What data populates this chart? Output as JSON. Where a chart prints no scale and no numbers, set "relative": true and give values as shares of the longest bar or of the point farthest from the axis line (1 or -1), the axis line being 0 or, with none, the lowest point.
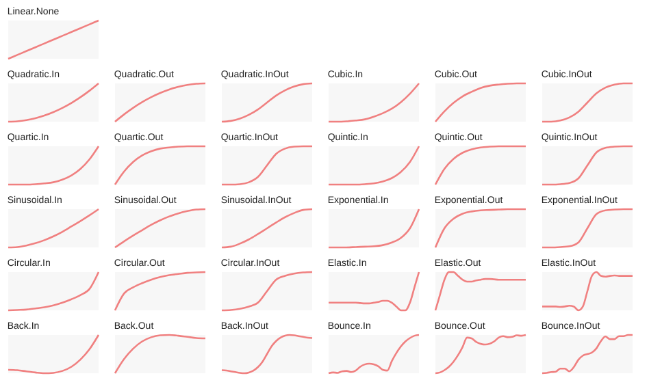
{
  "chart_data": [
    {
      "type": "line",
      "title": "Linear.None",
      "relative": true,
      "color": "#f08080",
      "categories": [
        null,
        null,
        null,
        null,
        null,
        null,
        null,
        null,
        null,
        null,
        null
      ],
      "values": [
        0,
        0.1,
        0.2,
        0.3,
        0.4,
        0.5,
        0.6,
        0.7,
        0.8,
        0.9,
        1
      ]
    },
    {
      "type": "line",
      "title": "Quadratic.In",
      "relative": true,
      "color": "#f08080",
      "categories": [
        null,
        null,
        null,
        null,
        null,
        null,
        null,
        null,
        null,
        null,
        null
      ],
      "values": [
        0,
        0.01,
        0.04,
        0.09,
        0.16,
        0.25,
        0.36,
        0.49,
        0.64,
        0.81,
        1
      ]
    },
    {
      "type": "line",
      "title": "Quadratic.Out",
      "relative": true,
      "color": "#f08080",
      "categories": [
        null,
        null,
        null,
        null,
        null,
        null,
        null,
        null,
        null,
        null,
        null
      ],
      "values": [
        0,
        0.19,
        0.36,
        0.51,
        0.64,
        0.75,
        0.84,
        0.91,
        0.96,
        0.99,
        1
      ]
    },
    {
      "type": "line",
      "title": "Quadratic.InOut",
      "relative": true,
      "color": "#f08080",
      "categories": [
        null,
        null,
        null,
        null,
        null,
        null,
        null,
        null,
        null,
        null,
        null
      ],
      "values": [
        0,
        0.02,
        0.08,
        0.18,
        0.32,
        0.5,
        0.68,
        0.82,
        0.92,
        0.98,
        1
      ]
    },
    {
      "type": "line",
      "title": "Cubic.In",
      "relative": true,
      "color": "#f08080",
      "categories": [
        null,
        null,
        null,
        null,
        null,
        null,
        null,
        null,
        null,
        null,
        null
      ],
      "values": [
        0,
        0,
        0.01,
        0.03,
        0.06,
        0.13,
        0.22,
        0.34,
        0.51,
        0.73,
        1
      ]
    },
    {
      "type": "line",
      "title": "Cubic.Out",
      "relative": true,
      "color": "#f08080",
      "categories": [
        null,
        null,
        null,
        null,
        null,
        null,
        null,
        null,
        null,
        null,
        null
      ],
      "values": [
        0,
        0.27,
        0.49,
        0.66,
        0.78,
        0.88,
        0.94,
        0.97,
        0.99,
        1,
        1
      ]
    },
    {
      "type": "line",
      "title": "Cubic.InOut",
      "relative": true,
      "color": "#f08080",
      "categories": [
        null,
        null,
        null,
        null,
        null,
        null,
        null,
        null,
        null,
        null,
        null
      ],
      "values": [
        0,
        0,
        0.03,
        0.11,
        0.26,
        0.5,
        0.74,
        0.89,
        0.97,
        1,
        1
      ]
    },
    {
      "type": "line",
      "title": "Quartic.In",
      "relative": true,
      "color": "#f08080",
      "categories": [
        null,
        null,
        null,
        null,
        null,
        null,
        null,
        null,
        null,
        null,
        null
      ],
      "values": [
        0,
        0,
        0,
        0.01,
        0.03,
        0.06,
        0.13,
        0.24,
        0.41,
        0.66,
        1
      ]
    },
    {
      "type": "line",
      "title": "Quartic.Out",
      "relative": true,
      "color": "#f08080",
      "categories": [
        null,
        null,
        null,
        null,
        null,
        null,
        null,
        null,
        null,
        null,
        null
      ],
      "values": [
        0,
        0.34,
        0.59,
        0.76,
        0.87,
        0.94,
        0.97,
        0.99,
        1,
        1,
        1
      ]
    },
    {
      "type": "line",
      "title": "Quartic.InOut",
      "relative": true,
      "color": "#f08080",
      "categories": [
        null,
        null,
        null,
        null,
        null,
        null,
        null,
        null,
        null,
        null,
        null
      ],
      "values": [
        0,
        0,
        0.01,
        0.06,
        0.2,
        0.5,
        0.8,
        0.94,
        0.99,
        1,
        1
      ]
    },
    {
      "type": "line",
      "title": "Quintic.In",
      "relative": true,
      "color": "#f08080",
      "categories": [
        null,
        null,
        null,
        null,
        null,
        null,
        null,
        null,
        null,
        null,
        null
      ],
      "values": [
        0,
        0,
        0,
        0,
        0.01,
        0.03,
        0.08,
        0.17,
        0.33,
        0.59,
        1
      ]
    },
    {
      "type": "line",
      "title": "Quintic.Out",
      "relative": true,
      "color": "#f08080",
      "categories": [
        null,
        null,
        null,
        null,
        null,
        null,
        null,
        null,
        null,
        null,
        null
      ],
      "values": [
        0,
        0.41,
        0.67,
        0.83,
        0.92,
        0.97,
        0.99,
        1,
        1,
        1,
        1
      ]
    },
    {
      "type": "line",
      "title": "Quintic.InOut",
      "relative": true,
      "color": "#f08080",
      "categories": [
        null,
        null,
        null,
        null,
        null,
        null,
        null,
        null,
        null,
        null,
        null
      ],
      "values": [
        0,
        0,
        0.01,
        0.04,
        0.16,
        0.5,
        0.84,
        0.96,
        0.99,
        1,
        1
      ]
    },
    {
      "type": "line",
      "title": "Sinusoidal.In",
      "relative": true,
      "color": "#f08080",
      "categories": [
        null,
        null,
        null,
        null,
        null,
        null,
        null,
        null,
        null,
        null,
        null
      ],
      "values": [
        0,
        0.01,
        0.05,
        0.11,
        0.19,
        0.29,
        0.41,
        0.55,
        0.69,
        0.84,
        1
      ]
    },
    {
      "type": "line",
      "title": "Sinusoidal.Out",
      "relative": true,
      "color": "#f08080",
      "categories": [
        null,
        null,
        null,
        null,
        null,
        null,
        null,
        null,
        null,
        null,
        null
      ],
      "values": [
        0,
        0.16,
        0.31,
        0.45,
        0.59,
        0.71,
        0.81,
        0.89,
        0.95,
        0.99,
        1
      ]
    },
    {
      "type": "line",
      "title": "Sinusoidal.InOut",
      "relative": true,
      "color": "#f08080",
      "categories": [
        null,
        null,
        null,
        null,
        null,
        null,
        null,
        null,
        null,
        null,
        null
      ],
      "values": [
        0,
        0.02,
        0.1,
        0.21,
        0.35,
        0.5,
        0.65,
        0.79,
        0.9,
        0.98,
        1
      ]
    },
    {
      "type": "line",
      "title": "Exponential.In",
      "relative": true,
      "color": "#f08080",
      "categories": [
        null,
        null,
        null,
        null,
        null,
        null,
        null,
        null,
        null,
        null,
        null
      ],
      "values": [
        0,
        0,
        0,
        0.01,
        0.02,
        0.03,
        0.06,
        0.13,
        0.25,
        0.5,
        1
      ]
    },
    {
      "type": "line",
      "title": "Exponential.Out",
      "relative": true,
      "color": "#f08080",
      "categories": [
        null,
        null,
        null,
        null,
        null,
        null,
        null,
        null,
        null,
        null,
        null
      ],
      "values": [
        0,
        0.5,
        0.75,
        0.88,
        0.94,
        0.97,
        0.98,
        0.99,
        1,
        1,
        1
      ]
    },
    {
      "type": "line",
      "title": "Exponential.InOut",
      "relative": true,
      "color": "#f08080",
      "categories": [
        null,
        null,
        null,
        null,
        null,
        null,
        null,
        null,
        null,
        null,
        null
      ],
      "values": [
        0,
        0,
        0.01,
        0.03,
        0.13,
        0.5,
        0.87,
        0.97,
        0.99,
        1,
        1
      ]
    },
    {
      "type": "line",
      "title": "Circular.In",
      "relative": true,
      "color": "#f08080",
      "categories": [
        null,
        null,
        null,
        null,
        null,
        null,
        null,
        null,
        null,
        null,
        null
      ],
      "values": [
        0,
        0.01,
        0.02,
        0.05,
        0.08,
        0.13,
        0.2,
        0.29,
        0.4,
        0.56,
        1
      ]
    },
    {
      "type": "line",
      "title": "Circular.Out",
      "relative": true,
      "color": "#f08080",
      "categories": [
        null,
        null,
        null,
        null,
        null,
        null,
        null,
        null,
        null,
        null,
        null
      ],
      "values": [
        0,
        0.44,
        0.6,
        0.71,
        0.8,
        0.87,
        0.92,
        0.95,
        0.98,
        0.99,
        1
      ]
    },
    {
      "type": "line",
      "title": "Circular.InOut",
      "relative": true,
      "color": "#f08080",
      "categories": [
        null,
        null,
        null,
        null,
        null,
        null,
        null,
        null,
        null,
        null,
        null
      ],
      "values": [
        0,
        0.01,
        0.04,
        0.1,
        0.2,
        0.5,
        0.8,
        0.9,
        0.96,
        0.99,
        1
      ]
    },
    {
      "type": "line",
      "title": "Elastic.In",
      "relative": true,
      "color": "#f08080",
      "categories": [
        null,
        null,
        null,
        null,
        null,
        null,
        null,
        null,
        null,
        null,
        null,
        null,
        null,
        null,
        null,
        null,
        null,
        null,
        null,
        null,
        null
      ],
      "values": [
        0.2,
        0.2,
        0.2,
        0.2,
        0.2,
        0.2,
        0.2,
        0.19,
        0.18,
        0.18,
        0.2,
        0.22,
        0.25,
        0.25,
        0.2,
        0.1,
        0,
        0,
        0.2,
        0.6,
        1
      ]
    },
    {
      "type": "line",
      "title": "Elastic.Out",
      "relative": true,
      "color": "#f08080",
      "categories": [
        null,
        null,
        null,
        null,
        null,
        null,
        null,
        null,
        null,
        null,
        null,
        null,
        null,
        null,
        null,
        null,
        null,
        null,
        null,
        null,
        null
      ],
      "values": [
        0,
        0.4,
        0.8,
        1,
        1,
        0.9,
        0.8,
        0.75,
        0.75,
        0.78,
        0.8,
        0.82,
        0.82,
        0.81,
        0.8,
        0.8,
        0.8,
        0.8,
        0.8,
        0.8,
        0.8
      ]
    },
    {
      "type": "line",
      "title": "Elastic.InOut",
      "relative": true,
      "color": "#f08080",
      "categories": [
        null,
        null,
        null,
        null,
        null,
        null,
        null,
        null,
        null,
        null,
        null,
        null,
        null,
        null,
        null,
        null,
        null,
        null,
        null,
        null,
        null
      ],
      "values": [
        0.1,
        0.1,
        0.1,
        0.1,
        0.09,
        0.1,
        0.12,
        0.1,
        0,
        0.1,
        0.5,
        0.9,
        1,
        0.9,
        0.88,
        0.9,
        0.91,
        0.9,
        0.9,
        0.9,
        0.9
      ]
    },
    {
      "type": "line",
      "title": "Back.In",
      "relative": true,
      "color": "#f08080",
      "categories": [
        null,
        null,
        null,
        null,
        null,
        null,
        null,
        null,
        null,
        null,
        null
      ],
      "values": [
        0.09,
        0.08,
        0.05,
        0.02,
        0,
        0.01,
        0.06,
        0.17,
        0.36,
        0.63,
        1
      ]
    },
    {
      "type": "line",
      "title": "Back.Out",
      "relative": true,
      "color": "#f08080",
      "categories": [
        null,
        null,
        null,
        null,
        null,
        null,
        null,
        null,
        null,
        null,
        null
      ],
      "values": [
        0,
        0.37,
        0.64,
        0.83,
        0.94,
        0.99,
        1,
        0.98,
        0.95,
        0.92,
        0.91
      ]
    },
    {
      "type": "line",
      "title": "Back.InOut",
      "relative": true,
      "color": "#f08080",
      "categories": [
        null,
        null,
        null,
        null,
        null,
        null,
        null,
        null,
        null,
        null,
        null,
        null,
        null,
        null,
        null,
        null,
        null,
        null,
        null,
        null,
        null
      ],
      "values": [
        0.08,
        0.07,
        0.05,
        0.03,
        0.01,
        0,
        0.02,
        0.07,
        0.16,
        0.3,
        0.5,
        0.7,
        0.84,
        0.93,
        0.98,
        1,
        0.99,
        0.97,
        0.95,
        0.93,
        0.92
      ]
    },
    {
      "type": "line",
      "title": "Bounce.In",
      "relative": true,
      "color": "#f08080",
      "categories": [
        null,
        null,
        null,
        null,
        null,
        null,
        null,
        null,
        null,
        null,
        null,
        null,
        null,
        null,
        null,
        null,
        null,
        null,
        null,
        null,
        null
      ],
      "values": [
        0,
        0.02,
        0.01,
        0.05,
        0.06,
        0.03,
        0.07,
        0.17,
        0.23,
        0.25,
        0.23,
        0.18,
        0.09,
        0.07,
        0.32,
        0.53,
        0.7,
        0.83,
        0.92,
        0.98,
        1
      ]
    },
    {
      "type": "line",
      "title": "Bounce.Out",
      "relative": true,
      "color": "#f08080",
      "categories": [
        null,
        null,
        null,
        null,
        null,
        null,
        null,
        null,
        null,
        null,
        null,
        null,
        null,
        null,
        null,
        null,
        null,
        null,
        null,
        null,
        null
      ],
      "values": [
        0,
        0.02,
        0.08,
        0.17,
        0.3,
        0.47,
        0.68,
        0.93,
        0.91,
        0.82,
        0.77,
        0.75,
        0.77,
        0.83,
        0.93,
        0.97,
        0.94,
        0.95,
        0.99,
        0.98,
        1
      ]
    },
    {
      "type": "line",
      "title": "Bounce.InOut",
      "relative": true,
      "color": "#f08080",
      "categories": [
        null,
        null,
        null,
        null,
        null,
        null,
        null,
        null,
        null,
        null,
        null,
        null,
        null,
        null,
        null,
        null,
        null,
        null,
        null,
        null,
        null
      ],
      "values": [
        0,
        0.01,
        0.03,
        0.04,
        0.12,
        0.12,
        0.05,
        0.16,
        0.35,
        0.46,
        0.5,
        0.54,
        0.65,
        0.84,
        0.96,
        0.89,
        0.89,
        0.97,
        0.97,
        1,
        1
      ]
    }
  ]
}
